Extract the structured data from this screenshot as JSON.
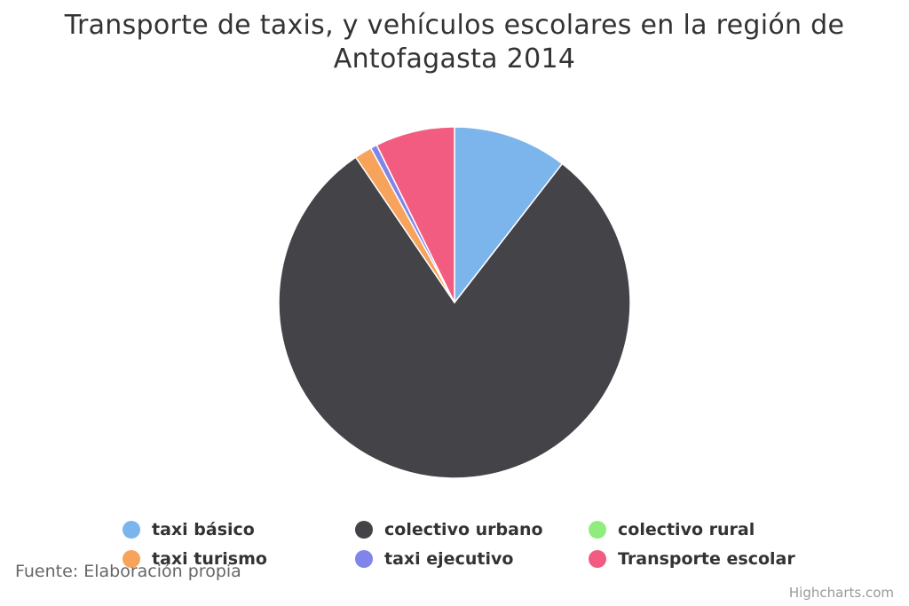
{
  "chart_data": {
    "type": "pie",
    "title": "Transporte de taxis, y vehículos escolares en la región de Antofagasta 2014",
    "series": [
      {
        "name": "taxi básico",
        "value": 10.5,
        "color": "#7cb5ec"
      },
      {
        "name": "colectivo urbano",
        "value": 80.0,
        "color": "#434348"
      },
      {
        "name": "colectivo rural",
        "value": 0.0,
        "color": "#90ed7d"
      },
      {
        "name": "taxi turismo",
        "value": 1.6,
        "color": "#f7a35c"
      },
      {
        "name": "taxi ejecutivo",
        "value": 0.6,
        "color": "#8085e9"
      },
      {
        "name": "Transporte escolar",
        "value": 7.3,
        "color": "#f15c80"
      }
    ],
    "legend_position": "bottom"
  },
  "source_note": "Fuente: Elaboración propia",
  "credits": "Highcharts.com"
}
